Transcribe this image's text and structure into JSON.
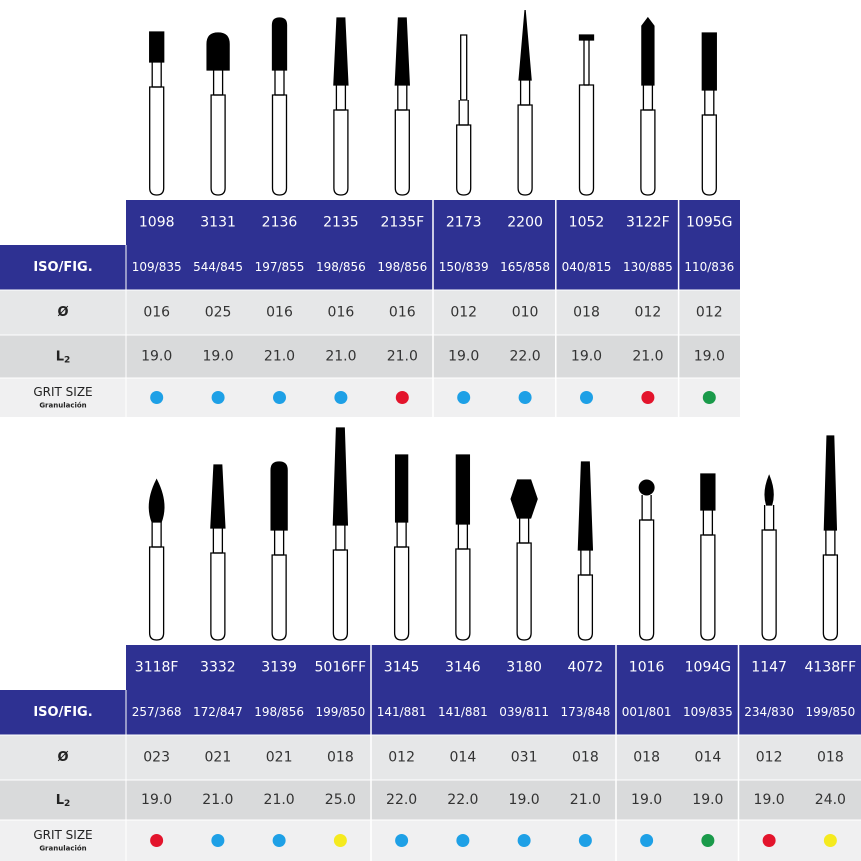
{
  "tables": [
    {
      "labels": {
        "iso": "ISO/FIG.",
        "diameter": "Ø",
        "l2": {
          "letter": "L",
          "sub": "2"
        },
        "grit": "GRIT SIZE",
        "grit_sub": "Granulación"
      },
      "columns": [
        {
          "code": "1098",
          "iso": "109/835",
          "diameter": "016",
          "l2": "19.0",
          "grit": "#1ea0e6"
        },
        {
          "code": "3131",
          "iso": "544/845",
          "diameter": "025",
          "l2": "19.0",
          "grit": "#1ea0e6"
        },
        {
          "code": "2136",
          "iso": "197/855",
          "diameter": "016",
          "l2": "21.0",
          "grit": "#1ea0e6"
        },
        {
          "code": "2135",
          "iso": "198/856",
          "diameter": "016",
          "l2": "21.0",
          "grit": "#1ea0e6"
        },
        {
          "code": "2135F",
          "iso": "198/856",
          "diameter": "016",
          "l2": "21.0",
          "grit": "#e3142c"
        },
        {
          "code": "2173",
          "iso": "150/839",
          "diameter": "012",
          "l2": "19.0",
          "grit": "#1ea0e6"
        },
        {
          "code": "2200",
          "iso": "165/858",
          "diameter": "010",
          "l2": "22.0",
          "grit": "#1ea0e6"
        },
        {
          "code": "1052",
          "iso": "040/815",
          "diameter": "018",
          "l2": "19.0",
          "grit": "#1ea0e6"
        },
        {
          "code": "3122F",
          "iso": "130/885",
          "diameter": "012",
          "l2": "21.0",
          "grit": "#e3142c"
        },
        {
          "code": "1095G",
          "iso": "110/836",
          "diameter": "012",
          "l2": "19.0",
          "grit": "#1a9a4a"
        }
      ]
    },
    {
      "labels": {
        "iso": "ISO/FIG.",
        "diameter": "Ø",
        "l2": {
          "letter": "L",
          "sub": "2"
        },
        "grit": "GRIT SIZE",
        "grit_sub": "Granulación"
      },
      "columns": [
        {
          "code": "3118F",
          "iso": "257/368",
          "diameter": "023",
          "l2": "19.0",
          "grit": "#e3142c"
        },
        {
          "code": "3332",
          "iso": "172/847",
          "diameter": "021",
          "l2": "21.0",
          "grit": "#1ea0e6"
        },
        {
          "code": "3139",
          "iso": "198/856",
          "diameter": "021",
          "l2": "21.0",
          "grit": "#1ea0e6"
        },
        {
          "code": "5016FF",
          "iso": "199/850",
          "diameter": "018",
          "l2": "25.0",
          "grit": "#f5ea1e"
        },
        {
          "code": "3145",
          "iso": "141/881",
          "diameter": "012",
          "l2": "22.0",
          "grit": "#1ea0e6"
        },
        {
          "code": "3146",
          "iso": "141/881",
          "diameter": "014",
          "l2": "22.0",
          "grit": "#1ea0e6"
        },
        {
          "code": "3180",
          "iso": "039/811",
          "diameter": "031",
          "l2": "19.0",
          "grit": "#1ea0e6"
        },
        {
          "code": "4072",
          "iso": "173/848",
          "diameter": "018",
          "l2": "21.0",
          "grit": "#1ea0e6"
        },
        {
          "code": "1016",
          "iso": "001/801",
          "diameter": "018",
          "l2": "19.0",
          "grit": "#1ea0e6"
        },
        {
          "code": "1094G",
          "iso": "109/835",
          "diameter": "014",
          "l2": "19.0",
          "grit": "#1a9a4a"
        },
        {
          "code": "1147",
          "iso": "234/830",
          "diameter": "012",
          "l2": "19.0",
          "grit": "#e3142c"
        },
        {
          "code": "4138FF",
          "iso": "199/850",
          "diameter": "018",
          "l2": "24.0",
          "grit": "#f5ea1e"
        }
      ]
    }
  ]
}
